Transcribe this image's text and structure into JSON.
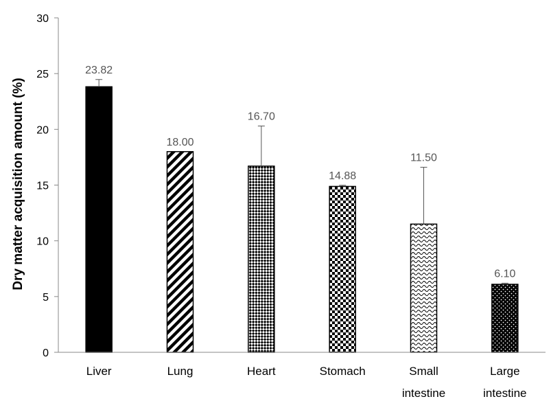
{
  "chart_data": {
    "type": "bar",
    "title": "",
    "xlabel": "",
    "ylabel": "Dry matter acquisition amount (%)",
    "ylim": [
      0,
      30
    ],
    "yticks": [
      0,
      5,
      10,
      15,
      20,
      25,
      30
    ],
    "grid": false,
    "categories": [
      [
        "Liver"
      ],
      [
        "Lung"
      ],
      [
        "Heart"
      ],
      [
        "Stomach"
      ],
      [
        "Small",
        "intestine"
      ],
      [
        "Large",
        "intestine"
      ]
    ],
    "values": [
      23.82,
      18.0,
      16.7,
      14.88,
      11.5,
      6.1
    ],
    "data_labels": [
      "23.82",
      "18.00",
      "16.70",
      "14.88",
      "11.50",
      "6.10"
    ],
    "error_bars_upper": [
      0.65,
      0.0,
      3.6,
      0.1,
      5.1,
      0.1
    ],
    "patterns": [
      "solid-black",
      "diagonal-stripes",
      "diagonal-checker",
      "checkerboard",
      "wave",
      "dots-on-black"
    ]
  }
}
